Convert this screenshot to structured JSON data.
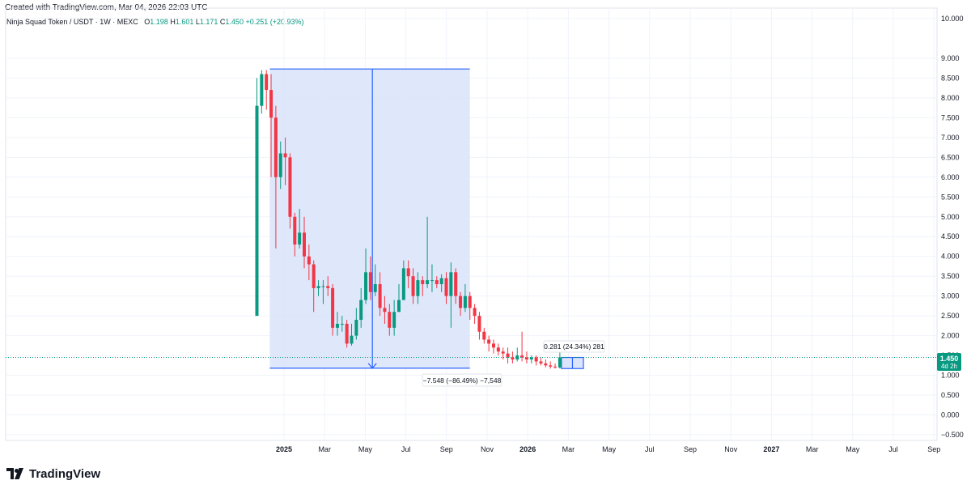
{
  "header": {
    "created_text": "Created with TradingView.com, Mar 04, 2026 22:03 UTC"
  },
  "legend": {
    "symbol": "Ninja Squad Token / USDT · 1W · MEXC",
    "o_label": "O",
    "o_value": "1.198",
    "h_label": "H",
    "h_value": "1.601",
    "l_label": "L",
    "l_value": "1.171",
    "c_label": "C",
    "c_value": "1.450",
    "change": "+0.251 (+20.93%)"
  },
  "price_badge": {
    "price": "1.450",
    "countdown": "4d 2h"
  },
  "colors": {
    "up": "#089981",
    "down": "#f23645",
    "range_fill": "#dce4fb",
    "range_line": "#2962ff",
    "badge": "#089981"
  },
  "measure_labels": {
    "small": "0.281 (24.34%) 281",
    "large": "−7.548 (−86.49%) −7,548"
  },
  "footer": {
    "logo_text": "TradingView"
  },
  "chart_data": {
    "type": "candlestick",
    "timeframe": "1W",
    "ylim": [
      -0.5,
      10.0
    ],
    "y_ticks": [
      "10.000",
      "9.000",
      "8.500",
      "8.000",
      "7.500",
      "7.000",
      "6.500",
      "6.000",
      "5.500",
      "5.000",
      "4.500",
      "4.000",
      "3.500",
      "3.000",
      "2.500",
      "2.000",
      "1.500",
      "1.000",
      "0.500",
      "0.000",
      "−0.500"
    ],
    "x_ticks": [
      {
        "label": "2025",
        "bold": true,
        "t": 0
      },
      {
        "label": "Mar",
        "bold": false,
        "t": 2
      },
      {
        "label": "May",
        "bold": false,
        "t": 4
      },
      {
        "label": "Jul",
        "bold": false,
        "t": 6
      },
      {
        "label": "Sep",
        "bold": false,
        "t": 8
      },
      {
        "label": "Nov",
        "bold": false,
        "t": 10
      },
      {
        "label": "2026",
        "bold": true,
        "t": 12
      },
      {
        "label": "Mar",
        "bold": false,
        "t": 14
      },
      {
        "label": "May",
        "bold": false,
        "t": 16
      },
      {
        "label": "Jul",
        "bold": false,
        "t": 18
      },
      {
        "label": "Sep",
        "bold": false,
        "t": 20
      },
      {
        "label": "Nov",
        "bold": false,
        "t": 22
      },
      {
        "label": "2027",
        "bold": true,
        "t": 24
      },
      {
        "label": "Mar",
        "bold": false,
        "t": 26
      },
      {
        "label": "May",
        "bold": false,
        "t": 28
      },
      {
        "label": "Jul",
        "bold": false,
        "t": 30
      },
      {
        "label": "Sep",
        "bold": false,
        "t": 32
      }
    ],
    "candles": [
      [
        2.5,
        7.8,
        8.5,
        2.5
      ],
      [
        7.8,
        8.6,
        8.7,
        7.6
      ],
      [
        8.6,
        8.2,
        8.7,
        7.7
      ],
      [
        8.2,
        7.5,
        8.6,
        6.0
      ],
      [
        7.5,
        6.0,
        7.8,
        4.2
      ],
      [
        6.0,
        6.6,
        6.9,
        5.7
      ],
      [
        6.6,
        6.5,
        7.0,
        5.8
      ],
      [
        6.5,
        5.0,
        6.6,
        4.7
      ],
      [
        5.0,
        4.3,
        5.1,
        4.0
      ],
      [
        4.3,
        4.6,
        5.2,
        4.2
      ],
      [
        4.6,
        4.0,
        5.0,
        3.7
      ],
      [
        4.0,
        3.8,
        4.3,
        3.4
      ],
      [
        3.8,
        3.2,
        3.9,
        2.6
      ],
      [
        3.2,
        3.25,
        3.4,
        3.0
      ],
      [
        3.25,
        3.25,
        3.4,
        2.8
      ],
      [
        3.25,
        3.2,
        3.5,
        3.0
      ],
      [
        3.2,
        2.2,
        3.3,
        2.0
      ],
      [
        2.2,
        2.3,
        2.6,
        2.0
      ],
      [
        2.3,
        2.3,
        2.5,
        2.1
      ],
      [
        2.3,
        1.8,
        2.4,
        1.7
      ],
      [
        1.8,
        2.0,
        2.3,
        1.75
      ],
      [
        2.0,
        2.4,
        2.7,
        1.9
      ],
      [
        2.4,
        2.9,
        3.2,
        2.2
      ],
      [
        2.9,
        3.6,
        4.2,
        2.8
      ],
      [
        3.6,
        3.1,
        4.0,
        2.9
      ],
      [
        3.1,
        3.3,
        3.8,
        3.0
      ],
      [
        3.3,
        2.7,
        3.6,
        2.5
      ],
      [
        2.7,
        2.6,
        3.0,
        2.3
      ],
      [
        2.6,
        2.2,
        2.8,
        2.0
      ],
      [
        2.2,
        2.6,
        2.9,
        2.0
      ],
      [
        2.6,
        2.9,
        3.3,
        2.6
      ],
      [
        2.9,
        3.7,
        3.9,
        2.9
      ],
      [
        3.7,
        3.5,
        3.9,
        3.2
      ],
      [
        3.5,
        3.0,
        3.7,
        2.8
      ],
      [
        3.0,
        3.4,
        3.6,
        2.8
      ],
      [
        3.4,
        3.3,
        3.5,
        3.0
      ],
      [
        3.3,
        3.4,
        5.0,
        3.2
      ],
      [
        3.4,
        3.4,
        3.8,
        3.1
      ],
      [
        3.4,
        3.3,
        3.5,
        3.2
      ],
      [
        3.3,
        3.45,
        3.55,
        3.1
      ],
      [
        3.45,
        3.0,
        3.6,
        2.8
      ],
      [
        3.0,
        3.6,
        3.85,
        2.2
      ],
      [
        3.6,
        3.0,
        3.7,
        2.8
      ],
      [
        3.0,
        2.7,
        3.1,
        2.5
      ],
      [
        2.7,
        3.0,
        3.3,
        2.6
      ],
      [
        3.0,
        2.7,
        3.1,
        2.4
      ],
      [
        2.7,
        2.5,
        2.8,
        2.3
      ],
      [
        2.5,
        2.1,
        2.6,
        1.9
      ],
      [
        2.1,
        1.9,
        2.2,
        1.8
      ],
      [
        1.9,
        1.8,
        2.0,
        1.6
      ],
      [
        1.8,
        1.7,
        1.9,
        1.55
      ],
      [
        1.7,
        1.6,
        1.8,
        1.5
      ],
      [
        1.6,
        1.55,
        1.7,
        1.4
      ],
      [
        1.55,
        1.45,
        1.7,
        1.3
      ],
      [
        1.45,
        1.4,
        1.6,
        1.3
      ],
      [
        1.4,
        1.5,
        1.7,
        1.35
      ],
      [
        1.5,
        1.45,
        2.1,
        1.35
      ],
      [
        1.45,
        1.4,
        1.6,
        1.3
      ],
      [
        1.4,
        1.45,
        1.5,
        1.3
      ],
      [
        1.45,
        1.35,
        1.5,
        1.25
      ],
      [
        1.35,
        1.3,
        1.45,
        1.25
      ],
      [
        1.3,
        1.25,
        1.4,
        1.2
      ],
      [
        1.25,
        1.22,
        1.35,
        1.17
      ],
      [
        1.22,
        1.198,
        1.3,
        1.17
      ],
      [
        1.198,
        1.45,
        1.601,
        1.171
      ]
    ],
    "range_box": {
      "t_start": -0.7,
      "t_end": 9.15,
      "price_top": 8.73,
      "price_bottom": 1.18
    },
    "vertical_measure": {
      "t": 4.35,
      "from": 8.73,
      "to": 1.18
    },
    "small_measure": {
      "t_start": 13.9,
      "t_end": 14.35,
      "price_low": 1.17,
      "price_high": 1.45
    },
    "last_price": 1.45
  }
}
